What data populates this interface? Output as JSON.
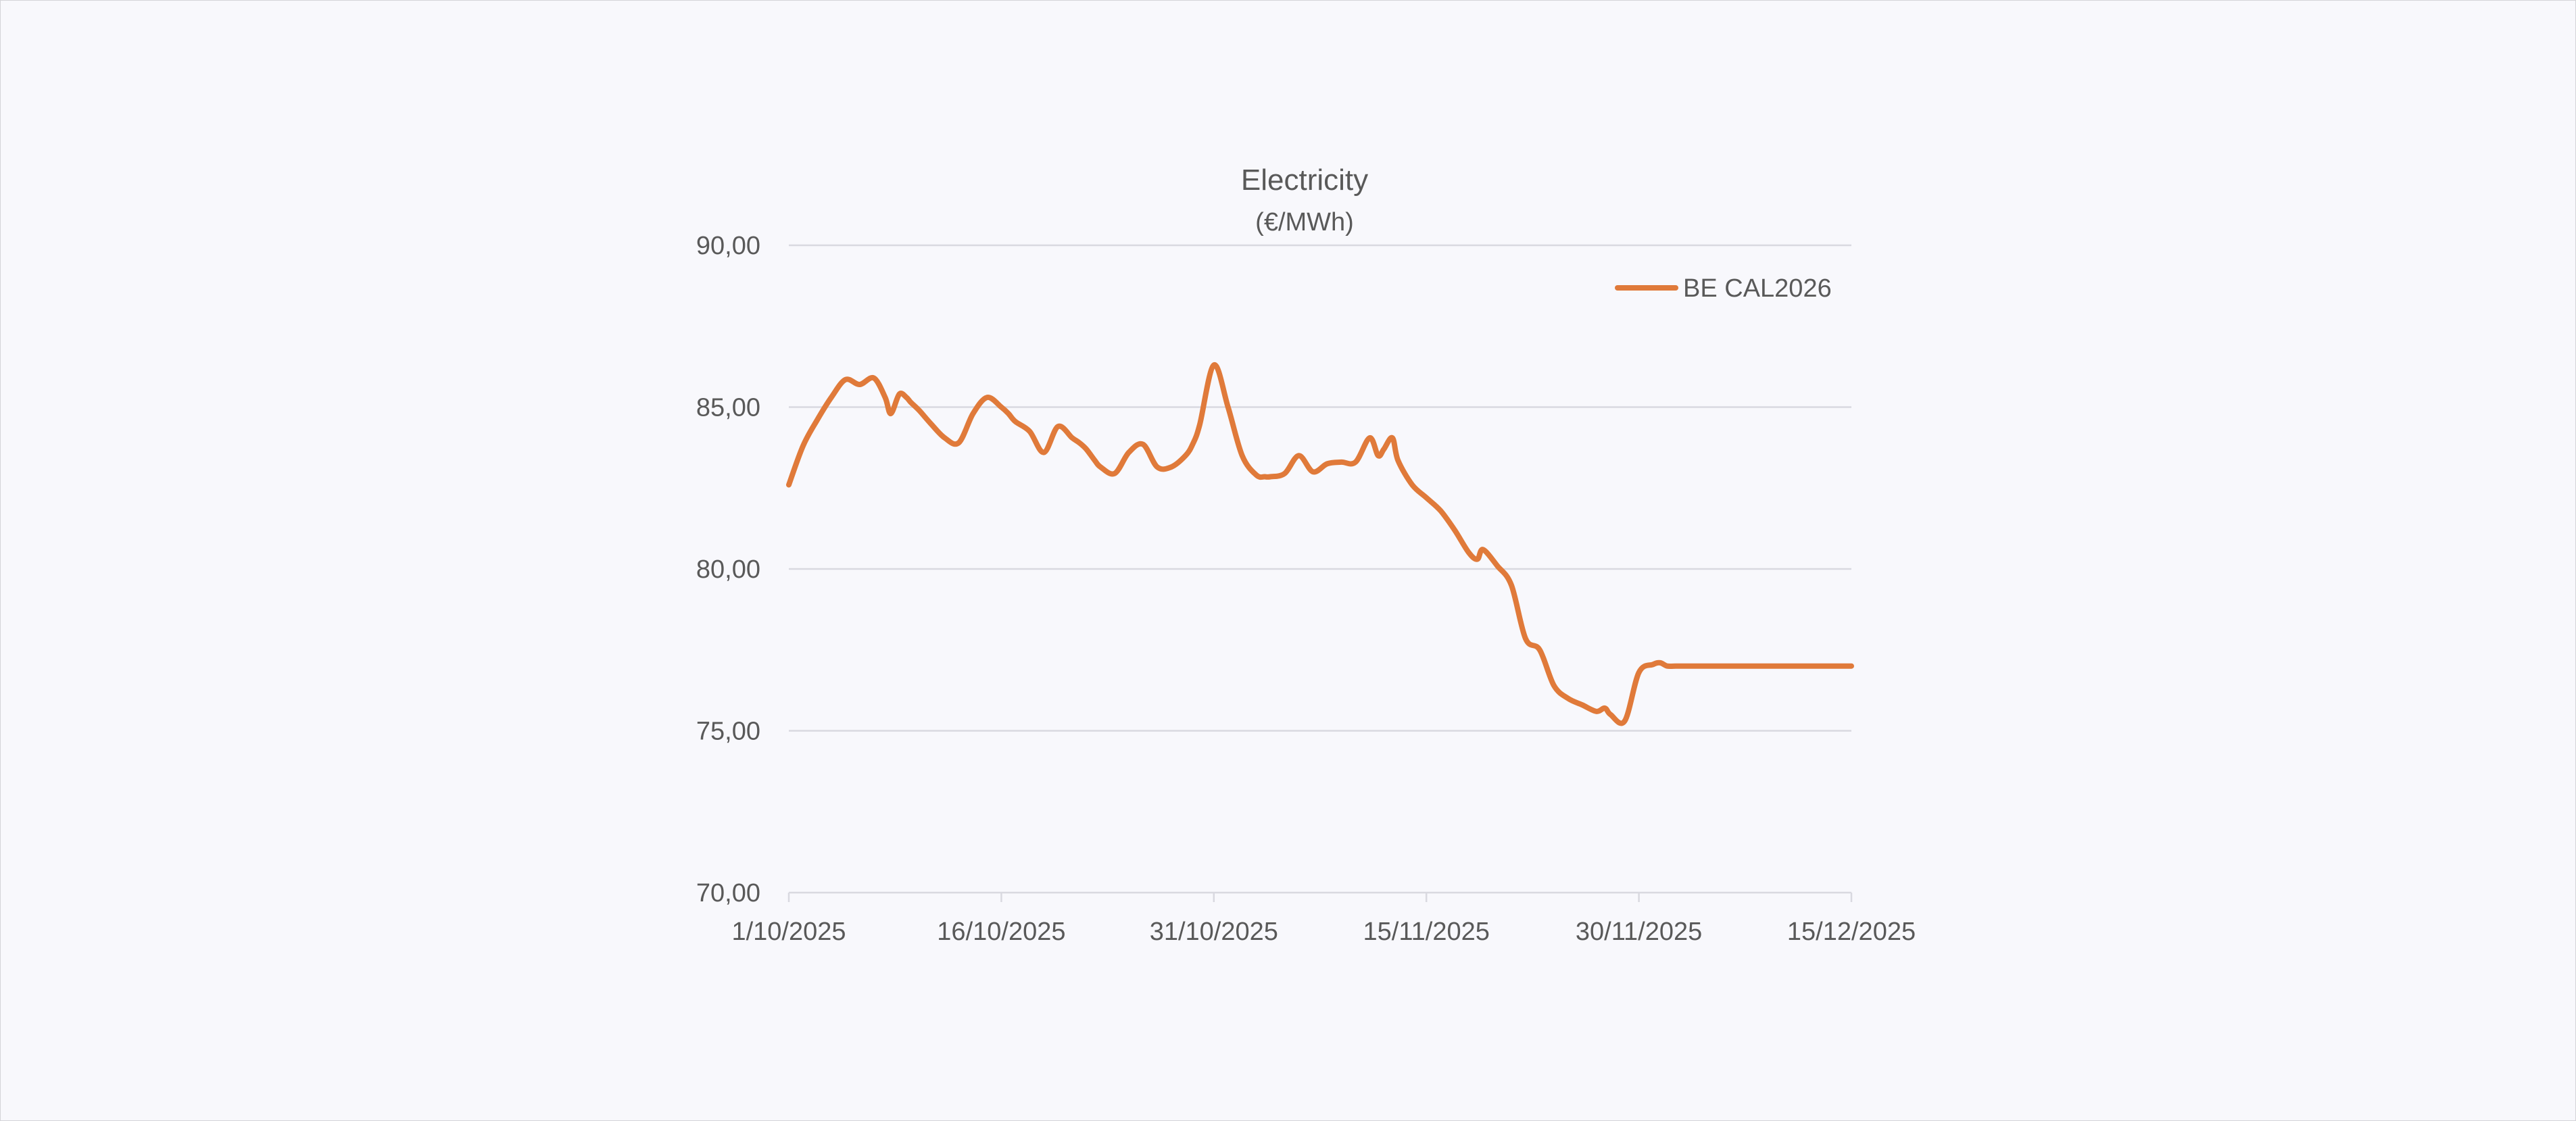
{
  "chart_data": {
    "type": "line",
    "title": "Electricity",
    "subtitle": "(€/MWh)",
    "xlabel": "",
    "ylabel": "",
    "ylim": [
      70,
      90
    ],
    "y_ticks": [
      70,
      75,
      80,
      85,
      90
    ],
    "y_tick_labels": [
      "70,00",
      "75,00",
      "80,00",
      "85,00",
      "90,00"
    ],
    "x_range": [
      0,
      75
    ],
    "x_ticks": [
      0,
      15,
      30,
      45,
      60,
      75
    ],
    "x_tick_labels": [
      "1/10/2025",
      "16/10/2025",
      "31/10/2025",
      "15/11/2025",
      "30/11/2025",
      "15/12/2025"
    ],
    "grid": true,
    "legend_position": "top-right",
    "series": [
      {
        "name": "BE CAL2026",
        "color": "#e07a3a",
        "x": [
          0,
          1,
          2,
          3,
          4,
          5,
          6,
          6.8,
          7.2,
          7.8,
          8.3,
          8.6,
          9.2,
          10,
          11,
          12,
          13,
          14,
          15,
          15.5,
          16,
          17,
          18,
          19,
          20,
          20.5,
          21,
          21.6,
          22,
          23,
          24,
          25,
          26,
          27,
          28,
          28.5,
          29,
          30,
          31,
          32,
          33,
          33.6,
          34,
          35,
          36,
          37,
          38,
          39,
          40,
          41,
          41.6,
          42,
          42.6,
          43,
          44,
          45,
          46,
          47,
          48,
          48.6,
          49,
          50,
          51,
          52,
          53,
          54,
          55,
          56,
          57,
          57.6,
          58,
          59,
          60,
          61,
          61.5,
          62,
          62.6,
          63,
          64,
          65,
          66,
          67,
          68,
          68.6,
          69,
          70,
          70.6,
          71,
          72,
          73,
          74,
          75
        ],
        "values": [
          82.6,
          83.8,
          84.6,
          85.3,
          85.85,
          85.7,
          85.9,
          85.3,
          84.8,
          85.4,
          85.3,
          85.15,
          84.9,
          84.5,
          84.05,
          83.9,
          84.8,
          85.3,
          85.0,
          84.8,
          84.55,
          84.25,
          83.6,
          84.4,
          84.05,
          83.9,
          83.7,
          83.35,
          83.15,
          82.95,
          83.6,
          83.85,
          83.15,
          83.15,
          83.5,
          83.85,
          84.45,
          86.3,
          85.0,
          83.5,
          82.9,
          82.85,
          82.85,
          82.95,
          83.5,
          83.0,
          83.25,
          83.3,
          83.3,
          84.05,
          83.5,
          83.7,
          84.05,
          83.35,
          82.6,
          82.2,
          81.8,
          81.2,
          80.5,
          80.3,
          80.6,
          80.1,
          79.5,
          77.85,
          77.5,
          76.4,
          76.0,
          75.8,
          75.6,
          75.7,
          75.5,
          75.3,
          76.8,
          77.05,
          77.1,
          77.0,
          77.0,
          77.0,
          77.0,
          77.0,
          77.0,
          77.0,
          77.0,
          77.0,
          77.0,
          77.0,
          77.0,
          77.0,
          77.0,
          77.0,
          77.0,
          77.0
        ]
      }
    ]
  }
}
